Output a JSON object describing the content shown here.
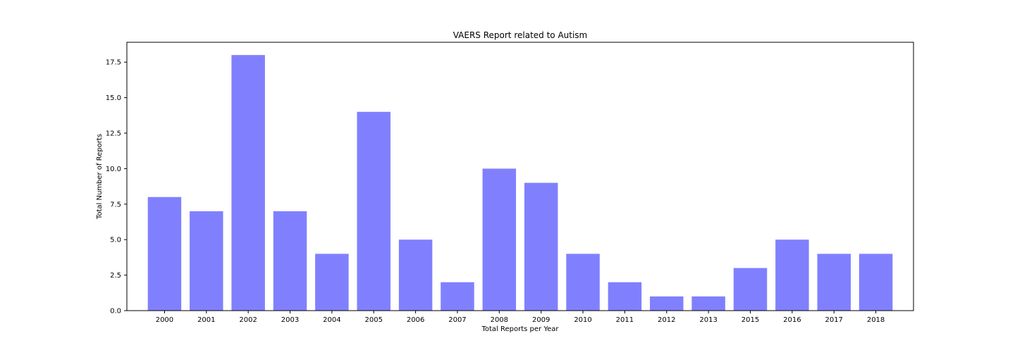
{
  "chart_data": {
    "type": "bar",
    "title": "VAERS Report related to Autism",
    "xlabel": "Total Reports per Year",
    "ylabel": "Total Number of Reports",
    "categories": [
      "2000",
      "2001",
      "2002",
      "2003",
      "2004",
      "2005",
      "2006",
      "2007",
      "2008",
      "2009",
      "2010",
      "2011",
      "2012",
      "2013",
      "2015",
      "2016",
      "2017",
      "2018"
    ],
    "values": [
      8,
      7,
      18,
      7,
      4,
      14,
      5,
      2,
      10,
      9,
      4,
      2,
      1,
      1,
      3,
      5,
      4,
      4
    ],
    "ylim": [
      0,
      18.9
    ],
    "yticks": [
      "0.0",
      "2.5",
      "5.0",
      "7.5",
      "10.0",
      "12.5",
      "15.0",
      "17.5"
    ],
    "bar_color": "#8080ff",
    "grid": false,
    "legend": "none"
  }
}
